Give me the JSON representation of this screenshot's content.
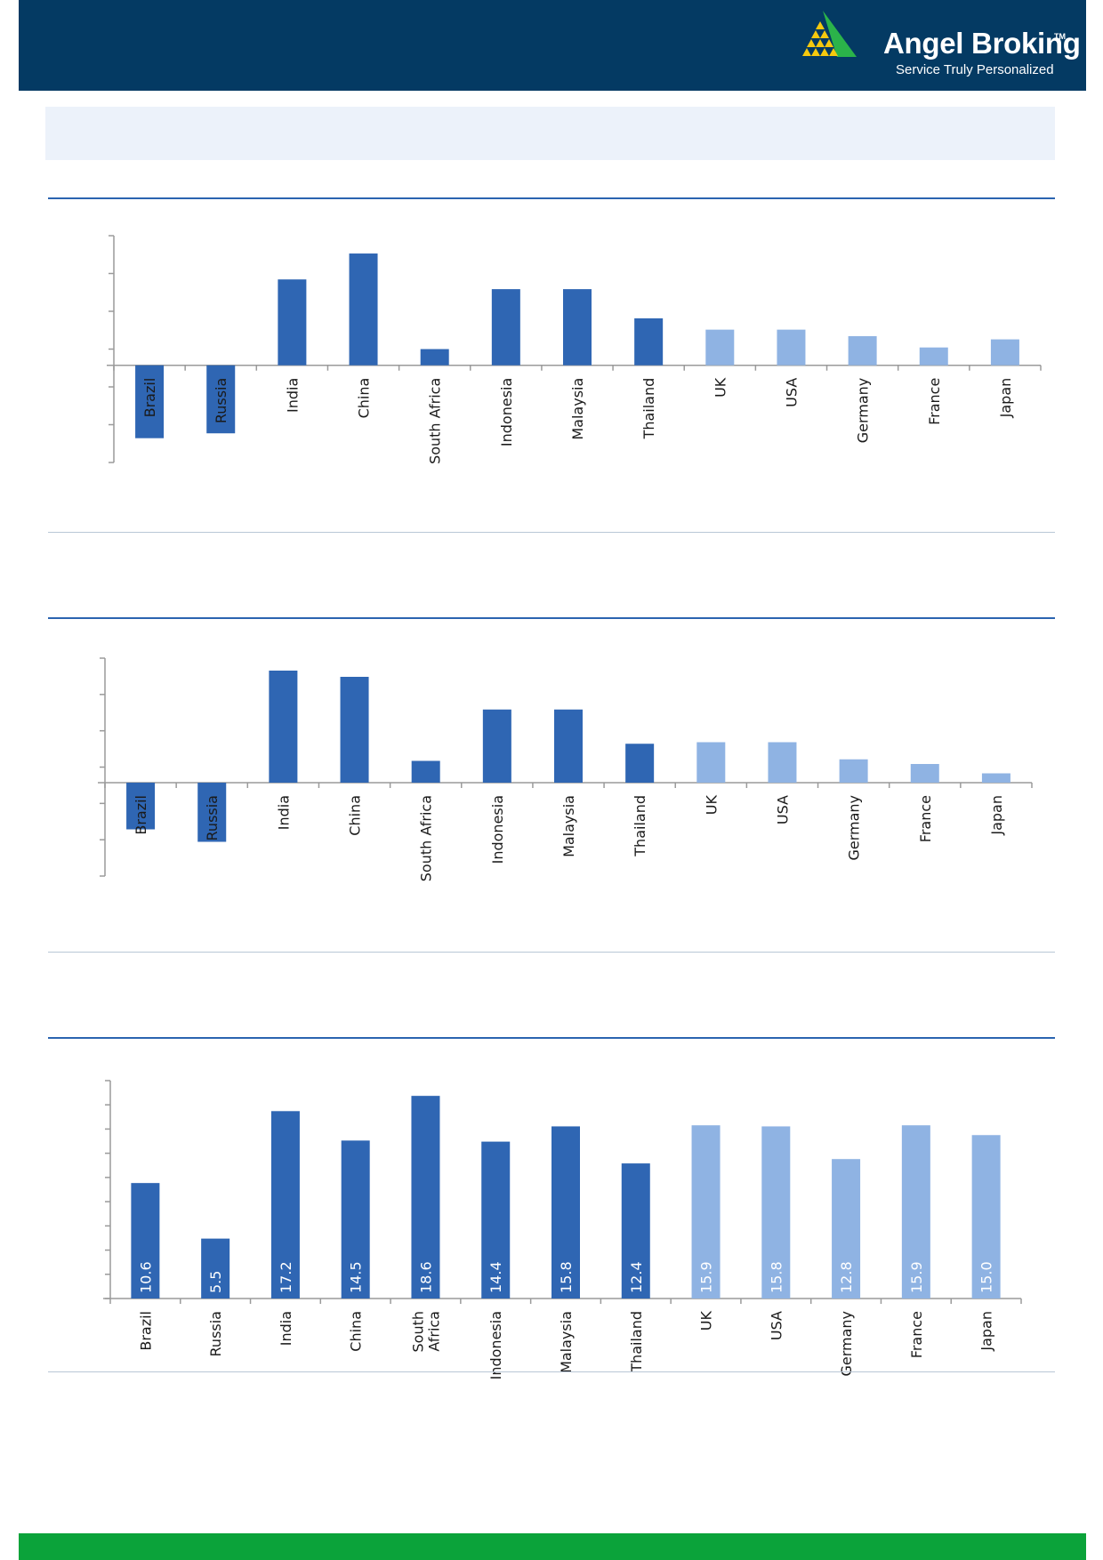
{
  "brand": {
    "name": "Angel Broking",
    "tm": "TM",
    "tagline": "Service Truly Personalized",
    "logo_icon": "pyramid-logo-icon",
    "colors": {
      "header_bg": "#043a63",
      "footer_bg": "#0ba33a",
      "logo_yellow": "#f6c90e",
      "logo_green": "#2bb34a"
    }
  },
  "chart_data": [
    {
      "type": "bar",
      "title": "",
      "xlabel": "",
      "ylabel": "",
      "categories": [
        "Brazil",
        "Russia",
        "India",
        "China",
        "South Africa",
        "Indonesia",
        "Malaysia",
        "Thailand",
        "UK",
        "USA",
        "Germany",
        "France",
        "Japan"
      ],
      "values": [
        -4.5,
        -4.2,
        5.3,
        6.9,
        1.0,
        4.7,
        4.7,
        2.9,
        2.2,
        2.2,
        1.8,
        1.1,
        1.6
      ],
      "ylim": [
        -6,
        8
      ],
      "grid": false,
      "legend": "none",
      "bar_colors": [
        "#2f66b3",
        "#2f66b3",
        "#2f66b3",
        "#2f66b3",
        "#2f66b3",
        "#2f66b3",
        "#2f66b3",
        "#2f66b3",
        "#8fb3e3",
        "#8fb3e3",
        "#8fb3e3",
        "#8fb3e3",
        "#8fb3e3"
      ]
    },
    {
      "type": "bar",
      "title": "",
      "xlabel": "",
      "ylabel": "",
      "categories": [
        "Brazil",
        "Russia",
        "India",
        "China",
        "South Africa",
        "Indonesia",
        "Malaysia",
        "Thailand",
        "UK",
        "USA",
        "Germany",
        "France",
        "Japan"
      ],
      "values": [
        -3.0,
        -3.8,
        7.2,
        6.8,
        1.4,
        4.7,
        4.7,
        2.5,
        2.6,
        2.6,
        1.5,
        1.2,
        0.6
      ],
      "ylim": [
        -6,
        8
      ],
      "grid": false,
      "legend": "none",
      "bar_colors": [
        "#2f66b3",
        "#2f66b3",
        "#2f66b3",
        "#2f66b3",
        "#2f66b3",
        "#2f66b3",
        "#2f66b3",
        "#2f66b3",
        "#8fb3e3",
        "#8fb3e3",
        "#8fb3e3",
        "#8fb3e3",
        "#8fb3e3"
      ]
    },
    {
      "type": "bar",
      "title": "",
      "xlabel": "",
      "ylabel": "",
      "categories": [
        "Brazil",
        "Russia",
        "India",
        "China",
        "South\nAfrica",
        "Indonesia",
        "Malaysia",
        "Thailand",
        "UK",
        "USA",
        "Germany",
        "France",
        "Japan"
      ],
      "values": [
        10.6,
        5.5,
        17.2,
        14.5,
        18.6,
        14.4,
        15.8,
        12.4,
        15.9,
        15.8,
        12.8,
        15.9,
        15.0
      ],
      "data_labels": [
        "10.6",
        "5.5",
        "17.2",
        "14.5",
        "18.6",
        "14.4",
        "15.8",
        "12.4",
        "15.9",
        "15.8",
        "12.8",
        "15.9",
        "15.0"
      ],
      "ylim": [
        0,
        20
      ],
      "grid": false,
      "legend": "none",
      "bar_colors": [
        "#2f66b3",
        "#2f66b3",
        "#2f66b3",
        "#2f66b3",
        "#2f66b3",
        "#2f66b3",
        "#2f66b3",
        "#2f66b3",
        "#8fb3e3",
        "#8fb3e3",
        "#8fb3e3",
        "#8fb3e3",
        "#8fb3e3"
      ]
    }
  ]
}
